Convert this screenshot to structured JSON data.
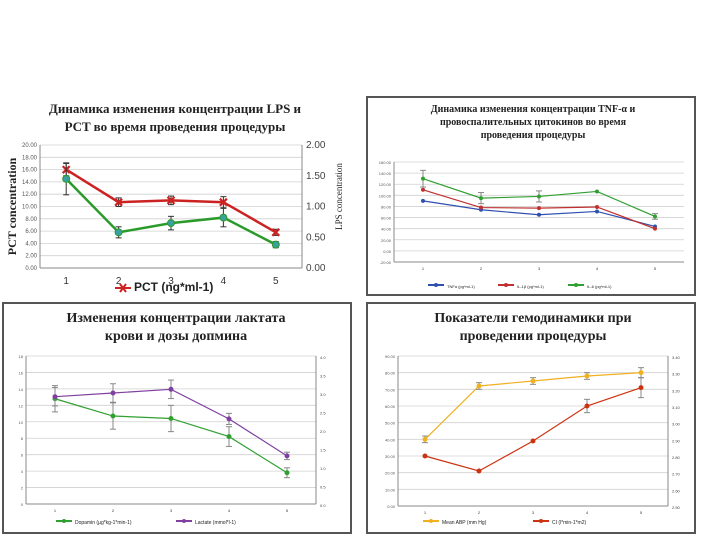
{
  "chart_data": [
    {
      "type": "line",
      "title_lines": [
        "Динамика изменения концентрации LPS и",
        "PCT во время проведения процедуры"
      ],
      "ylabel": "PCT concentration",
      "y2label": "LPS concentration",
      "categories": [
        "1",
        "2",
        "3",
        "4",
        "5"
      ],
      "y_ticks": [
        "0.00",
        "2.00",
        "4.00",
        "6.00",
        "8.00",
        "10.00",
        "12.00",
        "14.00",
        "16.00",
        "18.00",
        "20.00"
      ],
      "y2_ticks": [
        "0.00",
        "0.50",
        "1.00",
        "1.50",
        "2.00"
      ],
      "ylim": [
        0,
        20
      ],
      "y2lim": [
        0,
        2
      ],
      "legend_position": "bottom",
      "series": [
        {
          "name": "PCT (ng*ml-1)",
          "axis": "left",
          "color": "#cc2222",
          "marker": "x",
          "values": [
            16.0,
            10.7,
            11.0,
            10.7,
            5.8
          ],
          "errors": [
            1.0,
            0.7,
            0.7,
            0.9,
            0.5
          ]
        },
        {
          "name": "",
          "axis": "left",
          "color": "#2a9a2a",
          "marker": "circle",
          "values": [
            14.5,
            5.8,
            7.3,
            8.2,
            3.8
          ],
          "errors": [
            2.6,
            0.9,
            1.1,
            1.5,
            0.5
          ]
        }
      ]
    },
    {
      "type": "line",
      "title_lines": [
        "Динамика изменения концентрации TNF-α и",
        "провоспалительных цитокинов во время",
        "проведения процедуры"
      ],
      "categories": [
        "1",
        "2",
        "3",
        "4",
        "5"
      ],
      "y_ticks": [
        "-20.00",
        "0.00",
        "20.00",
        "40.00",
        "60.00",
        "80.00",
        "100.00",
        "120.00",
        "140.00",
        "160.00"
      ],
      "ylim": [
        -20,
        160
      ],
      "legend_position": "bottom",
      "series": [
        {
          "name": "TNFα (pg*ml-1)",
          "color": "#3050b0",
          "values": [
            90,
            74,
            65,
            71,
            44
          ],
          "errors": [
            0,
            0,
            0,
            0,
            0
          ]
        },
        {
          "name": "IL-1β (pg*ml-1)",
          "color": "#c03030",
          "values": [
            110,
            78,
            77,
            79,
            40
          ],
          "errors": [
            0,
            0,
            0,
            0,
            0
          ]
        },
        {
          "name": "IL-6 (pg*ml-1)",
          "color": "#30a030",
          "values": [
            130,
            95,
            98,
            107,
            62
          ],
          "errors": [
            15,
            10,
            10,
            0,
            5
          ]
        }
      ]
    },
    {
      "type": "line",
      "title_lines": [
        "Изменения концентрации лактата",
        "крови и дозы допмина"
      ],
      "categories": [
        "1",
        "2",
        "3",
        "4",
        "5"
      ],
      "y_ticks": [
        "0",
        "2",
        "4",
        "6",
        "8",
        "10",
        "12",
        "14",
        "16",
        "18"
      ],
      "y2_ticks": [
        "0.0",
        "0.5",
        "1.0",
        "1.5",
        "2.0",
        "2.5",
        "3.0",
        "3.5",
        "4.0"
      ],
      "ylim": [
        0,
        18
      ],
      "y2lim": [
        0,
        4
      ],
      "legend_position": "bottom",
      "series": [
        {
          "name": "Dopamin (µg*kg-1*min-1)",
          "axis": "left",
          "color": "#30a030",
          "values": [
            12.8,
            10.7,
            10.4,
            8.2,
            3.8
          ],
          "errors": [
            1.6,
            1.6,
            1.6,
            1.2,
            0.6
          ]
        },
        {
          "name": "Lactate (mmol*l-1)",
          "axis": "right",
          "color": "#8040a0",
          "values": [
            2.9,
            3.0,
            3.1,
            2.3,
            1.3
          ],
          "errors": [
            0.25,
            0.25,
            0.25,
            0.15,
            0.1
          ]
        }
      ]
    },
    {
      "type": "line",
      "title_lines": [
        "Показатели гемодинамики при",
        "проведении процедуры"
      ],
      "categories": [
        "1",
        "2",
        "3",
        "4",
        "5"
      ],
      "y_ticks": [
        "0.00",
        "10.00",
        "20.00",
        "30.00",
        "40.00",
        "50.00",
        "60.00",
        "70.00",
        "80.00",
        "90.00"
      ],
      "y2_ticks": [
        "2.50",
        "2.60",
        "2.70",
        "2.80",
        "2.90",
        "3.00",
        "3.10",
        "3.20",
        "3.30",
        "3.40"
      ],
      "ylim": [
        0,
        90
      ],
      "y2lim": [
        2.5,
        3.4
      ],
      "legend_position": "bottom",
      "series": [
        {
          "name": "Mean ABP (mm Hg)",
          "axis": "left",
          "color": "#f0b020",
          "values": [
            40,
            72,
            75,
            78,
            80
          ],
          "errors": [
            2,
            2,
            2,
            2,
            3
          ]
        },
        {
          "name": "CI (l*min-1*m2)",
          "axis": "right",
          "color": "#cc3311",
          "values": [
            2.8,
            2.71,
            2.89,
            3.1,
            3.21
          ],
          "errors": [
            0,
            0,
            0,
            0.04,
            0.06
          ]
        }
      ]
    }
  ]
}
